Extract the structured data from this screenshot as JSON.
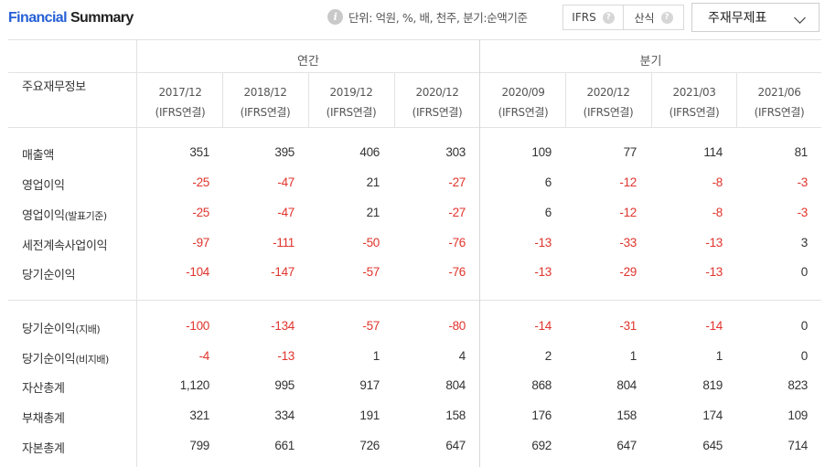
{
  "header": {
    "title_part1": "Financial",
    "title_part2": "Summary",
    "unit_text": "단위: 억원, %, 배, 천주, 분기:순액기준",
    "toggle_ifrs": "IFRS",
    "toggle_formula": "산식",
    "select_value": "주재무제표"
  },
  "table": {
    "corner_label": "주요재무정보",
    "group_annual": "연간",
    "group_quarter": "분기",
    "periods": [
      {
        "date": "2017/12",
        "basis": "(IFRS연결)"
      },
      {
        "date": "2018/12",
        "basis": "(IFRS연결)"
      },
      {
        "date": "2019/12",
        "basis": "(IFRS연결)"
      },
      {
        "date": "2020/12",
        "basis": "(IFRS연결)"
      },
      {
        "date": "2020/09",
        "basis": "(IFRS연결)"
      },
      {
        "date": "2020/12",
        "basis": "(IFRS연결)"
      },
      {
        "date": "2021/03",
        "basis": "(IFRS연결)"
      },
      {
        "date": "2021/06",
        "basis": "(IFRS연결)"
      }
    ],
    "rows": [
      {
        "label": "매출액",
        "sub": "",
        "values": [
          "351",
          "395",
          "406",
          "303",
          "109",
          "77",
          "114",
          "81"
        ]
      },
      {
        "label": "영업이익",
        "sub": "",
        "values": [
          "-25",
          "-47",
          "21",
          "-27",
          "6",
          "-12",
          "-8",
          "-3"
        ]
      },
      {
        "label": "영업이익",
        "sub": "(발표기준)",
        "values": [
          "-25",
          "-47",
          "21",
          "-27",
          "6",
          "-12",
          "-8",
          "-3"
        ]
      },
      {
        "label": "세전계속사업이익",
        "sub": "",
        "values": [
          "-97",
          "-111",
          "-50",
          "-76",
          "-13",
          "-33",
          "-13",
          "3"
        ]
      },
      {
        "label": "당기순이익",
        "sub": "",
        "values": [
          "-104",
          "-147",
          "-57",
          "-76",
          "-13",
          "-29",
          "-13",
          "0"
        ]
      },
      {
        "label": "당기순이익",
        "sub": "(지배)",
        "values": [
          "-100",
          "-134",
          "-57",
          "-80",
          "-14",
          "-31",
          "-14",
          "0"
        ]
      },
      {
        "label": "당기순이익",
        "sub": "(비지배)",
        "values": [
          "-4",
          "-13",
          "1",
          "4",
          "2",
          "1",
          "1",
          "0"
        ]
      },
      {
        "label": "자산총계",
        "sub": "",
        "values": [
          "1,120",
          "995",
          "917",
          "804",
          "868",
          "804",
          "819",
          "823"
        ]
      },
      {
        "label": "부채총계",
        "sub": "",
        "values": [
          "321",
          "334",
          "191",
          "158",
          "176",
          "158",
          "174",
          "109"
        ]
      },
      {
        "label": "자본총계",
        "sub": "",
        "values": [
          "799",
          "661",
          "726",
          "647",
          "692",
          "647",
          "645",
          "714"
        ]
      }
    ]
  },
  "colors": {
    "title_accent": "#2660d6",
    "negative": "#e0342c",
    "grid": "#e2e2e2"
  }
}
